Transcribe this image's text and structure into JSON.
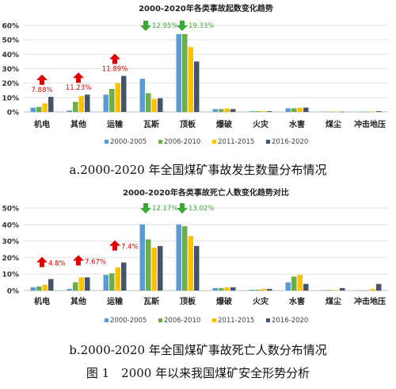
{
  "colors": {
    "series": [
      "#5b9bd5",
      "#70ad47",
      "#ffc000",
      "#44546a"
    ],
    "up_arrow": "#e00000",
    "down_arrow": "#3aa935",
    "up_label": "#e00000",
    "down_label": "#3aa935",
    "grid": "#e2e2e2"
  },
  "captions": {
    "a": "a.2000-2020 年全国煤矿事故发生数量分布情况",
    "b": "b.2000-2020 年全国煤矿事故死亡人数分布情况",
    "figure": "图 1　2000 年以来我国煤矿安全形势分析"
  },
  "chart_data": [
    {
      "type": "bar",
      "title": "2000-2020年各类事故起数变化趋势",
      "categories": [
        "机电",
        "其他",
        "运输",
        "瓦斯",
        "顶板",
        "爆破",
        "火灾",
        "水害",
        "煤尘",
        "冲击地压"
      ],
      "series": [
        {
          "name": "2000-2005",
          "values": [
            3,
            1,
            12,
            23,
            54,
            2,
            0.5,
            2.5,
            0.3,
            0.2
          ]
        },
        {
          "name": "2006-2010",
          "values": [
            3.5,
            7,
            16,
            13,
            54,
            2,
            0.5,
            2.5,
            0.2,
            0.2
          ]
        },
        {
          "name": "2011-2015",
          "values": [
            6,
            11,
            20,
            9,
            45,
            2.5,
            0.5,
            3,
            0.3,
            0.3
          ]
        },
        {
          "name": "2016-2020",
          "values": [
            10.5,
            12,
            25,
            9.5,
            35,
            2,
            0.5,
            3,
            0.2,
            0.5
          ]
        }
      ],
      "ylim": [
        0,
        60
      ],
      "yticks": [
        "0%",
        "10%",
        "20%",
        "30%",
        "40%",
        "50%",
        "60%"
      ],
      "grid": true,
      "legend_position": "bottom",
      "annotations": [
        {
          "category": "机电",
          "direction": "up",
          "text": "7.88%"
        },
        {
          "category": "其他",
          "direction": "up",
          "text": "11.23%"
        },
        {
          "category": "运输",
          "direction": "up",
          "text": "11.89%"
        },
        {
          "category": "瓦斯",
          "direction": "down",
          "text": "12.95%"
        },
        {
          "category": "顶板",
          "direction": "down",
          "text": "19.33%"
        }
      ]
    },
    {
      "type": "bar",
      "title": "2000-2020年各类事故死亡人数变化趋势对比",
      "categories": [
        "机电",
        "其他",
        "运输",
        "瓦斯",
        "顶板",
        "爆破",
        "火灾",
        "水害",
        "煤尘",
        "冲击地压"
      ],
      "series": [
        {
          "name": "2000-2005",
          "values": [
            2,
            1,
            9.5,
            40,
            40,
            1.5,
            0.5,
            5,
            0.3,
            0.2
          ]
        },
        {
          "name": "2006-2010",
          "values": [
            2.5,
            5,
            10.5,
            31,
            39,
            1.5,
            0.5,
            8.5,
            0.3,
            0.2
          ]
        },
        {
          "name": "2011-2015",
          "values": [
            3.5,
            8,
            14,
            26,
            33,
            2,
            1,
            9.5,
            0.3,
            1
          ]
        },
        {
          "name": "2016-2020",
          "values": [
            7,
            8,
            17,
            27,
            27,
            2,
            1,
            4,
            1.5,
            4
          ]
        }
      ],
      "ylim": [
        0,
        50
      ],
      "yticks": [
        "0%",
        "10%",
        "20%",
        "30%",
        "40%",
        "50%"
      ],
      "grid": true,
      "legend_position": "bottom",
      "annotations": [
        {
          "category": "机电",
          "direction": "up",
          "text": "4.8%"
        },
        {
          "category": "其他",
          "direction": "up",
          "text": "7.67%"
        },
        {
          "category": "运输",
          "direction": "up",
          "text": "7.4%"
        },
        {
          "category": "瓦斯",
          "direction": "down",
          "text": "12.17%"
        },
        {
          "category": "顶板",
          "direction": "down",
          "text": "13.02%"
        }
      ]
    }
  ]
}
